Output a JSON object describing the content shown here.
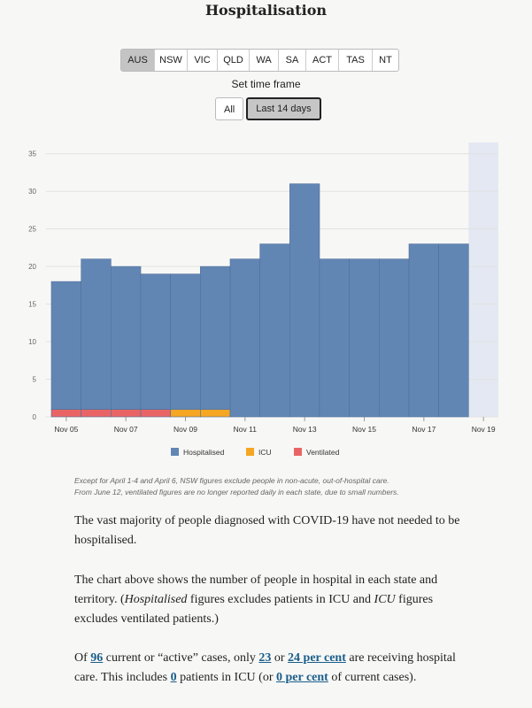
{
  "title": "Hospitalisation",
  "state_tabs": [
    {
      "label": "AUS",
      "active": true
    },
    {
      "label": "NSW",
      "active": false
    },
    {
      "label": "VIC",
      "active": false
    },
    {
      "label": "QLD",
      "active": false
    },
    {
      "label": "WA",
      "active": false
    },
    {
      "label": "SA",
      "active": false
    },
    {
      "label": "ACT",
      "active": false
    },
    {
      "label": "TAS",
      "active": false
    },
    {
      "label": "NT",
      "active": false
    }
  ],
  "timeframe": {
    "label": "Set time frame",
    "options": [
      {
        "label": "All",
        "active": false
      },
      {
        "label": "Last 14 days",
        "active": true
      }
    ]
  },
  "chart_data": {
    "type": "bar",
    "stacked": true,
    "categories": [
      "Nov 05",
      "Nov 06",
      "Nov 07",
      "Nov 08",
      "Nov 09",
      "Nov 10",
      "Nov 11",
      "Nov 12",
      "Nov 13",
      "Nov 14",
      "Nov 15",
      "Nov 16",
      "Nov 17",
      "Nov 18",
      "Nov 19"
    ],
    "x_tick_labels": [
      "Nov 05",
      "Nov 07",
      "Nov 09",
      "Nov 11",
      "Nov 13",
      "Nov 15",
      "Nov 17",
      "Nov 19"
    ],
    "series": [
      {
        "name": "Hospitalised",
        "color": "#6286b4",
        "values": [
          17,
          20,
          19,
          18,
          18,
          19,
          21,
          23,
          31,
          21,
          21,
          21,
          23,
          23,
          null
        ]
      },
      {
        "name": "ICU",
        "color": "#f5a623",
        "values": [
          0,
          0,
          0,
          0,
          1,
          1,
          0,
          0,
          0,
          0,
          0,
          0,
          0,
          0,
          null
        ]
      },
      {
        "name": "Ventilated",
        "color": "#e96565",
        "values": [
          1,
          1,
          1,
          1,
          0,
          0,
          0,
          0,
          0,
          0,
          0,
          0,
          0,
          0,
          null
        ]
      }
    ],
    "y_ticks": [
      0,
      5,
      10,
      15,
      20,
      25,
      30,
      35
    ],
    "ylim": [
      0,
      36.5
    ],
    "shaded_region_color": "#e3e8f2",
    "legend_position": "bottom"
  },
  "note": {
    "line1": "Except for April 1-4 and April 6, NSW figures exclude people in non-acute, out-of-hospital care.",
    "line2": "From June 12, ventilated figures are no longer reported daily in each state, due to small numbers."
  },
  "paragraphs": {
    "p1": "The vast majority of people diagnosed with COVID-19 have not needed to be hospitalised.",
    "p2_a": "The chart above shows the number of people in hospital in each state and territory. (",
    "p2_b": "Hospitalised",
    "p2_c": " figures excludes patients in ICU and ",
    "p2_d": "ICU",
    "p2_e": " figures excludes ventilated patients.)",
    "p3_a": "Of ",
    "p3_active": "96",
    "p3_b": " current or “active” cases, only ",
    "p3_hosp": "23",
    "p3_c": " or ",
    "p3_hosp_pct": "24 per cent",
    "p3_d": " are receiving hospital care. This includes ",
    "p3_icu": "0",
    "p3_e": " patients in ICU (or ",
    "p3_icu_pct": "0 per cent",
    "p3_f": " of current cases)."
  }
}
